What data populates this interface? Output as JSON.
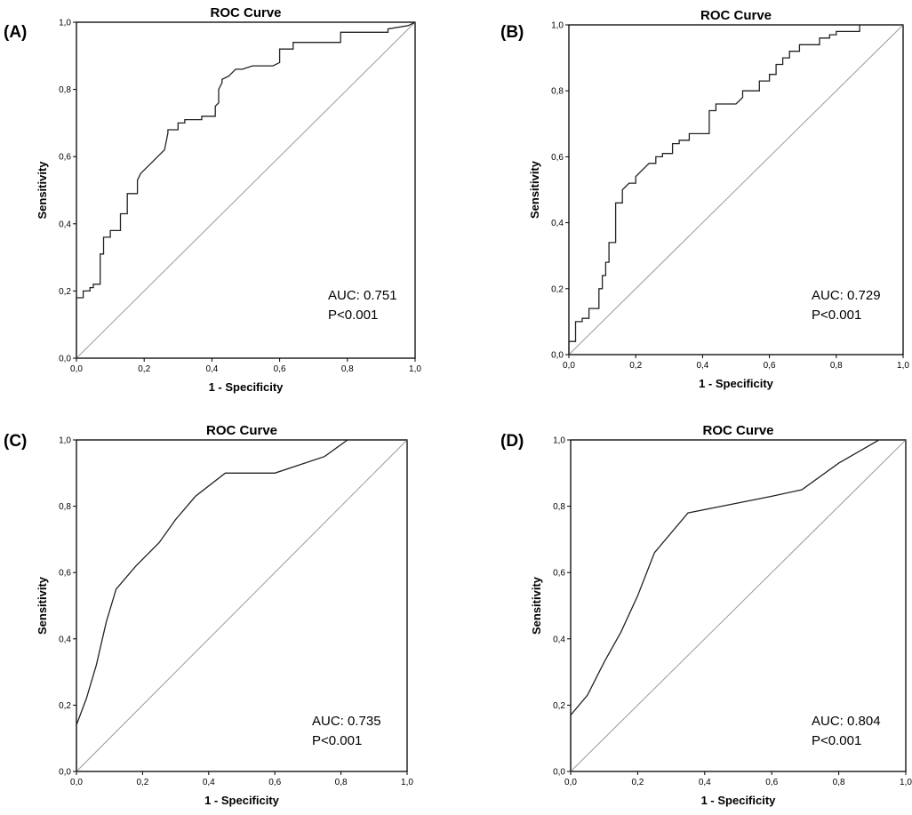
{
  "figure": {
    "tick_labels": [
      "0,0",
      "0,2",
      "0,4",
      "0,6",
      "0,8",
      "1,0"
    ]
  },
  "chart_data": [
    {
      "type": "line",
      "panel": "(A)",
      "title": "ROC Curve",
      "xlabel": "1 - Specificity",
      "ylabel": "Sensitivity",
      "xlim": [
        0,
        1
      ],
      "ylim": [
        0,
        1
      ],
      "auc_text": "AUC: 0.751",
      "p_text": "P<0.001",
      "reference_line": [
        [
          0,
          0
        ],
        [
          1,
          1
        ]
      ],
      "series": [
        {
          "name": "ROC",
          "x": [
            0,
            0,
            0.02,
            0.02,
            0.04,
            0.04,
            0.05,
            0.05,
            0.07,
            0.07,
            0.08,
            0.08,
            0.1,
            0.1,
            0.13,
            0.13,
            0.15,
            0.15,
            0.18,
            0.18,
            0.19,
            0.2,
            0.22,
            0.24,
            0.24,
            0.26,
            0.26,
            0.27,
            0.27,
            0.3,
            0.3,
            0.32,
            0.32,
            0.37,
            0.37,
            0.41,
            0.41,
            0.42,
            0.42,
            0.43,
            0.43,
            0.45,
            0.46,
            0.47,
            0.49,
            0.52,
            0.52,
            0.58,
            0.6,
            0.6,
            0.64,
            0.64,
            0.78,
            0.78,
            0.92,
            0.92,
            0.98,
            1
          ],
          "y": [
            0,
            0.18,
            0.18,
            0.2,
            0.2,
            0.21,
            0.21,
            0.22,
            0.22,
            0.31,
            0.31,
            0.36,
            0.36,
            0.38,
            0.38,
            0.43,
            0.43,
            0.49,
            0.49,
            0.53,
            0.55,
            0.56,
            0.58,
            0.6,
            0.6,
            0.62,
            0.62,
            0.67,
            0.68,
            0.68,
            0.7,
            0.7,
            0.71,
            0.71,
            0.72,
            0.72,
            0.75,
            0.76,
            0.8,
            0.82,
            0.83,
            0.84,
            0.85,
            0.86,
            0.86,
            0.87,
            0.87,
            0.87,
            0.88,
            0.92,
            0.92,
            0.94,
            0.94,
            0.97,
            0.97,
            0.98,
            0.99,
            1
          ]
        }
      ]
    },
    {
      "type": "line",
      "panel": "(B)",
      "title": "ROC Curve",
      "xlabel": "1 - Specificity",
      "ylabel": "Sensitivity",
      "xlim": [
        0,
        1
      ],
      "ylim": [
        0,
        1
      ],
      "auc_text": "AUC: 0.729",
      "p_text": "P<0.001",
      "reference_line": [
        [
          0,
          0
        ],
        [
          1,
          1
        ]
      ],
      "series": [
        {
          "name": "ROC",
          "x": [
            0,
            0,
            0.02,
            0.02,
            0.04,
            0.04,
            0.06,
            0.06,
            0.09,
            0.09,
            0.1,
            0.1,
            0.11,
            0.11,
            0.12,
            0.12,
            0.14,
            0.14,
            0.16,
            0.16,
            0.18,
            0.2,
            0.2,
            0.22,
            0.24,
            0.26,
            0.26,
            0.28,
            0.28,
            0.31,
            0.31,
            0.33,
            0.33,
            0.36,
            0.36,
            0.42,
            0.42,
            0.44,
            0.44,
            0.5,
            0.52,
            0.52,
            0.57,
            0.57,
            0.6,
            0.6,
            0.62,
            0.62,
            0.64,
            0.64,
            0.66,
            0.66,
            0.69,
            0.69,
            0.75,
            0.75,
            0.78,
            0.78,
            0.8,
            0.8,
            0.87,
            0.87,
            1
          ],
          "y": [
            0,
            0.04,
            0.04,
            0.1,
            0.1,
            0.11,
            0.11,
            0.14,
            0.14,
            0.2,
            0.2,
            0.24,
            0.24,
            0.28,
            0.28,
            0.34,
            0.34,
            0.46,
            0.46,
            0.5,
            0.52,
            0.52,
            0.54,
            0.56,
            0.58,
            0.58,
            0.6,
            0.6,
            0.61,
            0.61,
            0.64,
            0.64,
            0.65,
            0.65,
            0.67,
            0.67,
            0.74,
            0.74,
            0.76,
            0.76,
            0.78,
            0.8,
            0.8,
            0.83,
            0.83,
            0.85,
            0.85,
            0.88,
            0.88,
            0.9,
            0.9,
            0.92,
            0.92,
            0.94,
            0.94,
            0.96,
            0.96,
            0.97,
            0.97,
            0.98,
            0.98,
            1,
            1
          ]
        }
      ]
    },
    {
      "type": "line",
      "panel": "(C)",
      "title": "ROC Curve",
      "xlabel": "1 - Specificity",
      "ylabel": "Sensitivity",
      "xlim": [
        0,
        1
      ],
      "ylim": [
        0,
        1
      ],
      "auc_text": "AUC: 0.735",
      "p_text": "P<0.001",
      "reference_line": [
        [
          0,
          0
        ],
        [
          1,
          1
        ]
      ],
      "series": [
        {
          "name": "ROC",
          "x": [
            0,
            0,
            0.03,
            0.06,
            0.09,
            0.12,
            0.18,
            0.25,
            0.3,
            0.36,
            0.45,
            0.6,
            0.75,
            0.82,
            1
          ],
          "y": [
            0,
            0.14,
            0.22,
            0.32,
            0.45,
            0.55,
            0.62,
            0.69,
            0.76,
            0.83,
            0.9,
            0.9,
            0.95,
            1,
            1
          ]
        }
      ]
    },
    {
      "type": "line",
      "panel": "(D)",
      "title": "ROC Curve",
      "xlabel": "1 - Specificity",
      "ylabel": "Sensitivity",
      "xlim": [
        0,
        1
      ],
      "ylim": [
        0,
        1
      ],
      "auc_text": "AUC: 0.804",
      "p_text": "P<0.001",
      "reference_line": [
        [
          0,
          0
        ],
        [
          1,
          1
        ]
      ],
      "series": [
        {
          "name": "ROC",
          "x": [
            0,
            0,
            0.05,
            0.1,
            0.15,
            0.2,
            0.25,
            0.35,
            0.5,
            0.6,
            0.69,
            0.8,
            0.92,
            1
          ],
          "y": [
            0,
            0.17,
            0.23,
            0.33,
            0.42,
            0.53,
            0.66,
            0.78,
            0.81,
            0.83,
            0.85,
            0.93,
            1,
            1
          ]
        }
      ]
    }
  ]
}
